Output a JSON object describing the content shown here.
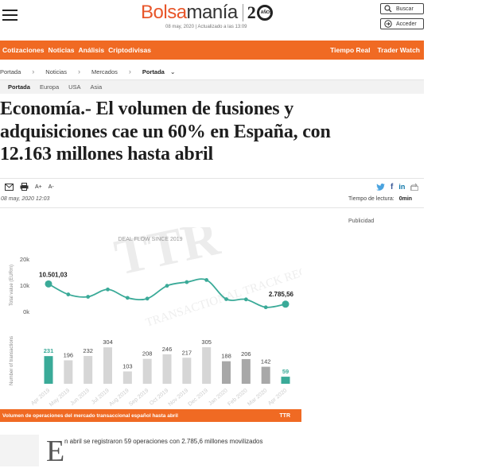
{
  "header": {
    "logo": {
      "part1": "Bolsa",
      "part2": "manía",
      "anniversary_digit": "2",
      "anniversary_small": "AÑOS"
    },
    "dateline": "08 may, 2020 | Actualizado a las 13:09",
    "search_label": "Buscar",
    "login_label": "Acceder"
  },
  "nav": {
    "left": [
      "Cotizaciones",
      "Noticias",
      "Análisis",
      "Criptodivisas"
    ],
    "right": [
      "Tiempo Real",
      "Trader Watch"
    ]
  },
  "breadcrumb": [
    "Portada",
    "Noticias",
    "Mercados",
    "Portada"
  ],
  "subnav": [
    "Portada",
    "Europa",
    "USA",
    "Asia"
  ],
  "article": {
    "headline_lines": [
      "Economía.- El volumen de fusiones y",
      "adquisiciones cae un 60% en España, con",
      "12.163 millones hasta abril"
    ],
    "font_tools": [
      "A+",
      "A-"
    ],
    "date": "08 may, 2020 12:03",
    "reading_time_label": "Tiempo de lectura:",
    "reading_time_value": "0min",
    "ad_label": "Publicidad",
    "dropcap": "E",
    "lead": "n abril se registraron 59 operaciones con 2.785,6 millones movilizados"
  },
  "chart_data": {
    "type": "line+bar",
    "title": "DEAL FLOW SINCE 2019",
    "categories": [
      "Apr 2019",
      "May 2019",
      "Jun 2019",
      "Jul 2019",
      "Aug 2019",
      "Sep 2019",
      "Oct 2019",
      "Nov 2019",
      "Dec 2019",
      "Jan 2020",
      "Feb 2020",
      "Mar 2020",
      "Apr 2020"
    ],
    "line_series": {
      "ylabel": "Total value (EURm)",
      "ticks": [
        "20k",
        "10k",
        "0k"
      ],
      "ylim": [
        0,
        20000
      ],
      "values": [
        10501.03,
        6500,
        5600,
        8400,
        5200,
        4900,
        9800,
        11200,
        12000,
        4700,
        4600,
        1600,
        2785.56
      ],
      "labels": {
        "first": "10.501,03",
        "last": "2.785,56"
      }
    },
    "bar_series": {
      "ylabel": "Number of transactions",
      "values": [
        231,
        196,
        232,
        304,
        103,
        208,
        246,
        217,
        305,
        188,
        206,
        142,
        59
      ],
      "highlight_color": "#3aaa98",
      "normal_color": "#d6d6d6",
      "dark_color": "#a8a8a8"
    },
    "line_color": "#3aaa98",
    "watermark": "TTR · TRANSACTIONAL TRACK RECORD",
    "caption": "Volumen de operaciones del mercado transaccional español hasta abril",
    "source": "TTR"
  }
}
